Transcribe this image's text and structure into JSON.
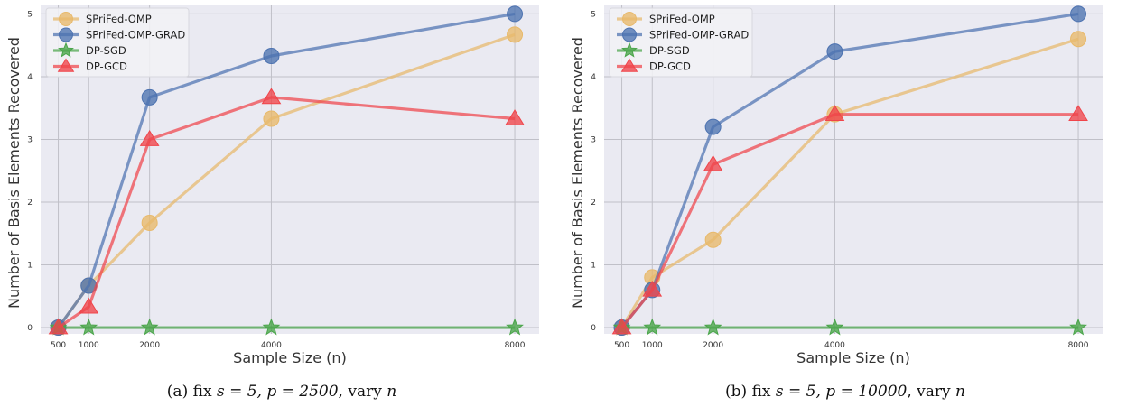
{
  "chart_data": [
    {
      "type": "line",
      "ylabel": "Number of Basis Elements Recovered",
      "xlabel": "Sample Size (n)",
      "x": [
        500,
        1000,
        2000,
        4000,
        8000
      ],
      "xticks": [
        "500",
        "1000",
        "2000",
        "4000",
        "8000"
      ],
      "yticks": [
        "0",
        "1",
        "2",
        "3",
        "4",
        "5"
      ],
      "ylim": [
        -0.1,
        5.15
      ],
      "xlim": [
        210,
        8400
      ],
      "grid": true,
      "legend": "top-left",
      "series": [
        {
          "name": "SPriFed-OMP",
          "values": [
            0,
            0.67,
            1.67,
            3.33,
            4.67
          ],
          "color": "#e8b96a",
          "marker": "circle"
        },
        {
          "name": "SPriFed-OMP-GRAD",
          "values": [
            0,
            0.67,
            3.67,
            4.33,
            5.0
          ],
          "color": "#4c72b0",
          "marker": "circle"
        },
        {
          "name": "DP-SGD",
          "values": [
            0,
            0,
            0,
            0,
            0
          ],
          "color": "#4aa54a",
          "marker": "star"
        },
        {
          "name": "DP-GCD",
          "values": [
            0,
            0.33,
            3.0,
            3.67,
            3.33
          ],
          "color": "#f0444a",
          "marker": "triangle"
        }
      ],
      "caption": {
        "prefix": "(a) fix ",
        "math": "s = 5, p = 2500",
        "middle": ", vary ",
        "var": "n"
      }
    },
    {
      "type": "line",
      "ylabel": "Number of Basis Elements Recovered",
      "xlabel": "Sample Size (n)",
      "x": [
        500,
        1000,
        2000,
        4000,
        8000
      ],
      "xticks": [
        "500",
        "1000",
        "2000",
        "4000",
        "8000"
      ],
      "yticks": [
        "0",
        "1",
        "2",
        "3",
        "4",
        "5"
      ],
      "ylim": [
        -0.1,
        5.15
      ],
      "xlim": [
        210,
        8400
      ],
      "grid": true,
      "legend": "top-left",
      "series": [
        {
          "name": "SPriFed-OMP",
          "values": [
            0,
            0.8,
            1.4,
            3.4,
            4.6
          ],
          "color": "#e8b96a",
          "marker": "circle"
        },
        {
          "name": "SPriFed-OMP-GRAD",
          "values": [
            0,
            0.6,
            3.2,
            4.4,
            5.0
          ],
          "color": "#4c72b0",
          "marker": "circle"
        },
        {
          "name": "DP-SGD",
          "values": [
            0,
            0,
            0,
            0,
            0
          ],
          "color": "#4aa54a",
          "marker": "star"
        },
        {
          "name": "DP-GCD",
          "values": [
            0,
            0.6,
            2.6,
            3.4,
            3.4
          ],
          "color": "#f0444a",
          "marker": "triangle"
        }
      ],
      "caption": {
        "prefix": "(b) fix ",
        "math": "s = 5, p = 10000",
        "middle": ", vary ",
        "var": "n"
      }
    }
  ]
}
